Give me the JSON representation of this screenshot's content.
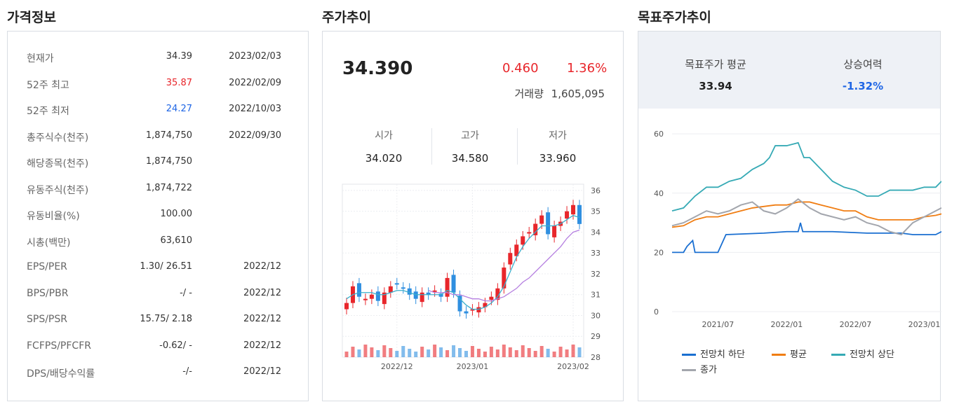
{
  "titles": {
    "price_info": "가격정보",
    "trend": "주가추이",
    "target": "목표주가추이"
  },
  "price_info": {
    "rows": [
      {
        "label": "현재가",
        "value": "34.39",
        "date": "2023/02/03",
        "tone": ""
      },
      {
        "label": "52주 최고",
        "value": "35.87",
        "date": "2022/02/09",
        "tone": "up"
      },
      {
        "label": "52주 최저",
        "value": "24.27",
        "date": "2022/10/03",
        "tone": "down"
      },
      {
        "label": "총주식수(천주)",
        "value": "1,874,750",
        "date": "2022/09/30",
        "tone": ""
      },
      {
        "label": "해당종목(천주)",
        "value": "1,874,750",
        "date": "",
        "tone": ""
      },
      {
        "label": "유동주식(천주)",
        "value": "1,874,722",
        "date": "",
        "tone": ""
      },
      {
        "label": "유동비율(%)",
        "value": "100.00",
        "date": "",
        "tone": ""
      },
      {
        "label": "시총(백만)",
        "value": "63,610",
        "date": "",
        "tone": ""
      },
      {
        "label": "EPS/PER",
        "value": "1.30/ 26.51",
        "date": "2022/12",
        "tone": ""
      },
      {
        "label": "BPS/PBR",
        "value": "-/ -",
        "date": "2022/12",
        "tone": ""
      },
      {
        "label": "SPS/PSR",
        "value": "15.75/ 2.18",
        "date": "2022/12",
        "tone": ""
      },
      {
        "label": "FCFPS/PFCFR",
        "value": "-0.62/ -",
        "date": "2022/12",
        "tone": ""
      },
      {
        "label": "DPS/배당수익률",
        "value": "-/-",
        "date": "2022/12",
        "tone": ""
      }
    ]
  },
  "trend": {
    "price": "34.390",
    "change": "0.460",
    "change_pct": "1.36%",
    "volume_label": "거래량",
    "volume": "1,605,095",
    "open_label": "시가",
    "open": "34.020",
    "high_label": "고가",
    "high": "34.580",
    "low_label": "저가",
    "low": "33.960",
    "colors": {
      "up": "#e8262b",
      "down": "#2f8fe0",
      "ma_short": "#3aaecb",
      "ma_long": "#b57fe0"
    }
  },
  "target": {
    "avg_label": "목표주가 평균",
    "avg": "33.94",
    "upside_label": "상승여력",
    "upside": "-1.32%",
    "legend": {
      "low": "전망치 하단",
      "avg": "평균",
      "high": "전망치 상단",
      "close": "종가"
    },
    "colors": {
      "low": "#1a6fd1",
      "avg": "#f07d12",
      "high": "#36aab5",
      "close": "#a3a6ad"
    }
  },
  "chart_data": [
    {
      "type": "line",
      "title": "주가추이",
      "x_ticks": [
        "2022/12",
        "2023/01",
        "2023/02"
      ],
      "y_ticks": [
        28,
        29,
        30,
        31,
        32,
        33,
        34,
        35,
        36
      ],
      "ylim": [
        28,
        36.3
      ],
      "series": [
        {
          "name": "close",
          "values": [
            30.6,
            31.4,
            30.9,
            30.8,
            31.0,
            30.7,
            31.1,
            31.4,
            31.5,
            31.3,
            31.0,
            30.8,
            31.1,
            31.0,
            31.2,
            30.9,
            31.8,
            31.1,
            30.2,
            30.1,
            30.3,
            30.4,
            30.6,
            30.9,
            31.3,
            32.3,
            33.0,
            33.4,
            33.8,
            34.0,
            34.4,
            34.8,
            33.9,
            34.3,
            34.5,
            35.0,
            35.3,
            34.39
          ]
        },
        {
          "name": "ma_short",
          "values": [
            30.8,
            31.0,
            31.1,
            31.1,
            31.1,
            31.0,
            31.0,
            31.1,
            31.2,
            31.2,
            31.1,
            31.0,
            31.0,
            31.0,
            31.0,
            31.0,
            31.2,
            31.1,
            30.8,
            30.5,
            30.3,
            30.3,
            30.4,
            30.6,
            30.9,
            31.4,
            32.1,
            32.8,
            33.3,
            33.7,
            34.0,
            34.3,
            34.3,
            34.3,
            34.4,
            34.6,
            34.8,
            34.7
          ]
        },
        {
          "name": "ma_long",
          "values": [
            null,
            null,
            null,
            null,
            null,
            null,
            null,
            null,
            null,
            null,
            null,
            null,
            null,
            31.2,
            31.1,
            31.1,
            31.1,
            31.0,
            31.0,
            30.9,
            30.8,
            30.8,
            30.7,
            30.7,
            30.8,
            30.9,
            31.1,
            31.3,
            31.6,
            31.8,
            32.1,
            32.4,
            32.7,
            33.0,
            33.3,
            33.7,
            34.0,
            34.1
          ]
        }
      ]
    },
    {
      "type": "line",
      "title": "목표주가추이",
      "x_ticks": [
        "2021/07",
        "2022/01",
        "2022/07",
        "2023/01"
      ],
      "y_ticks": [
        0,
        20,
        40,
        60
      ],
      "ylim": [
        0,
        65
      ],
      "x_range": [
        "2021/03",
        "2023/02"
      ],
      "series": [
        {
          "name": "전망치 하단",
          "points": [
            [
              0,
              20
            ],
            [
              1,
              20
            ],
            [
              1.3,
              22
            ],
            [
              1.8,
              24
            ],
            [
              2,
              20
            ],
            [
              4,
              20
            ],
            [
              4.7,
              26
            ],
            [
              8,
              26.5
            ],
            [
              10,
              27
            ],
            [
              11,
              27
            ],
            [
              11.2,
              30
            ],
            [
              11.4,
              27
            ],
            [
              14,
              27
            ],
            [
              17,
              26.5
            ],
            [
              20,
              26.5
            ],
            [
              21,
              26
            ],
            [
              23,
              26
            ],
            [
              23.5,
              27
            ]
          ]
        },
        {
          "name": "평균",
          "points": [
            [
              0,
              28.5
            ],
            [
              1,
              29
            ],
            [
              2,
              31
            ],
            [
              3,
              32
            ],
            [
              4,
              32
            ],
            [
              5,
              33
            ],
            [
              6,
              34
            ],
            [
              7,
              35
            ],
            [
              8,
              35.5
            ],
            [
              9,
              36
            ],
            [
              10,
              36
            ],
            [
              11,
              37
            ],
            [
              12,
              37
            ],
            [
              13,
              36
            ],
            [
              14,
              35
            ],
            [
              15,
              34
            ],
            [
              16,
              34
            ],
            [
              17,
              32
            ],
            [
              18,
              31
            ],
            [
              19,
              31
            ],
            [
              20,
              31
            ],
            [
              21,
              31
            ],
            [
              22,
              32
            ],
            [
              23,
              32.5
            ],
            [
              23.5,
              33
            ]
          ]
        },
        {
          "name": "전망치 상단",
          "points": [
            [
              0,
              34
            ],
            [
              1,
              35
            ],
            [
              2,
              39
            ],
            [
              3,
              42
            ],
            [
              4,
              42
            ],
            [
              5,
              44
            ],
            [
              6,
              45
            ],
            [
              7,
              48
            ],
            [
              8,
              50
            ],
            [
              8.5,
              52
            ],
            [
              9,
              56
            ],
            [
              10,
              56
            ],
            [
              11,
              57
            ],
            [
              11.5,
              52
            ],
            [
              12,
              52
            ],
            [
              13,
              48
            ],
            [
              14,
              44
            ],
            [
              15,
              42
            ],
            [
              16,
              41
            ],
            [
              17,
              39
            ],
            [
              18,
              39
            ],
            [
              19,
              41
            ],
            [
              20,
              41
            ],
            [
              21,
              41
            ],
            [
              22,
              42
            ],
            [
              23,
              42
            ],
            [
              23.5,
              44
            ]
          ]
        },
        {
          "name": "종가",
          "points": [
            [
              0,
              29
            ],
            [
              1,
              30
            ],
            [
              2,
              32
            ],
            [
              3,
              34
            ],
            [
              4,
              33
            ],
            [
              5,
              34
            ],
            [
              6,
              36
            ],
            [
              7,
              37
            ],
            [
              8,
              34
            ],
            [
              9,
              33
            ],
            [
              10,
              35
            ],
            [
              11,
              38
            ],
            [
              12,
              35
            ],
            [
              13,
              33
            ],
            [
              14,
              32
            ],
            [
              15,
              31
            ],
            [
              16,
              32
            ],
            [
              17,
              30
            ],
            [
              18,
              29
            ],
            [
              19,
              27
            ],
            [
              20,
              26
            ],
            [
              21,
              30
            ],
            [
              22,
              32
            ],
            [
              23,
              34
            ],
            [
              23.5,
              35
            ]
          ]
        }
      ]
    }
  ]
}
